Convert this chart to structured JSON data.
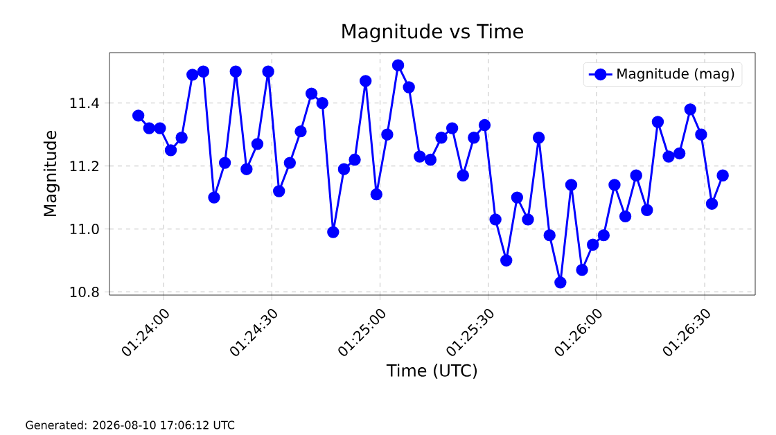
{
  "chart_data": {
    "type": "line",
    "title": "Magnitude vs Time",
    "xlabel": "Time (UTC)",
    "ylabel": "Magnitude",
    "annotations": [
      "Generated: 2026-08-10 17:06:12 UTC"
    ],
    "x": [
      1.398056,
      1.398889,
      1.399722,
      1.400556,
      1.401389,
      1.402222,
      1.403056,
      1.403889,
      1.404722,
      1.405556,
      1.406389,
      1.407222,
      1.408056,
      1.408889,
      1.409722,
      1.410556,
      1.411389,
      1.412222,
      1.413056,
      1.413889,
      1.414722,
      1.415556,
      1.416389,
      1.417222,
      1.418056,
      1.418889,
      1.419722,
      1.420556,
      1.421389,
      1.422222,
      1.423056,
      1.423889,
      1.424722,
      1.425556,
      1.426389,
      1.427222,
      1.428056,
      1.428889,
      1.429722,
      1.430556,
      1.431389,
      1.432222,
      1.433056,
      1.433889,
      1.434722,
      1.435556,
      1.436389,
      1.437222,
      1.438056,
      1.438889,
      1.439722,
      1.440556,
      1.441389,
      1.442222,
      1.443056
    ],
    "series": [
      {
        "name": "Magnitude (mag)",
        "color": "#0000ff",
        "values": [
          11.36,
          11.32,
          11.32,
          11.25,
          11.29,
          11.49,
          11.5,
          11.1,
          11.21,
          11.5,
          11.19,
          11.27,
          11.5,
          11.12,
          11.21,
          11.31,
          11.43,
          11.4,
          10.99,
          11.19,
          11.22,
          11.47,
          11.11,
          11.3,
          11.52,
          11.45,
          11.23,
          11.22,
          11.29,
          11.32,
          11.17,
          11.29,
          11.33,
          11.03,
          10.9,
          11.1,
          11.03,
          11.29,
          10.98,
          10.83,
          11.14,
          10.87,
          10.95,
          10.98,
          11.14,
          11.04,
          11.17,
          11.06,
          11.34,
          11.23,
          11.24,
          11.38,
          11.3,
          11.08,
          11.17
        ]
      }
    ],
    "xlim": [
      1.395833,
      1.445556
    ],
    "xticks": [
      {
        "value": 1.4,
        "label": "01:24:00"
      },
      {
        "value": 1.408333,
        "label": "01:24:30"
      },
      {
        "value": 1.416667,
        "label": "01:25:00"
      },
      {
        "value": 1.425,
        "label": "01:25:30"
      },
      {
        "value": 1.433333,
        "label": "01:26:00"
      },
      {
        "value": 1.441667,
        "label": "01:26:30"
      }
    ],
    "ylim": [
      10.79,
      11.56
    ],
    "yticks": [
      10.8,
      {
        "value": 11.0,
        "label": "11.0"
      },
      11.2,
      11.4
    ],
    "grid": true,
    "legend": "top right",
    "marker": "circle",
    "line_style": "solid"
  }
}
